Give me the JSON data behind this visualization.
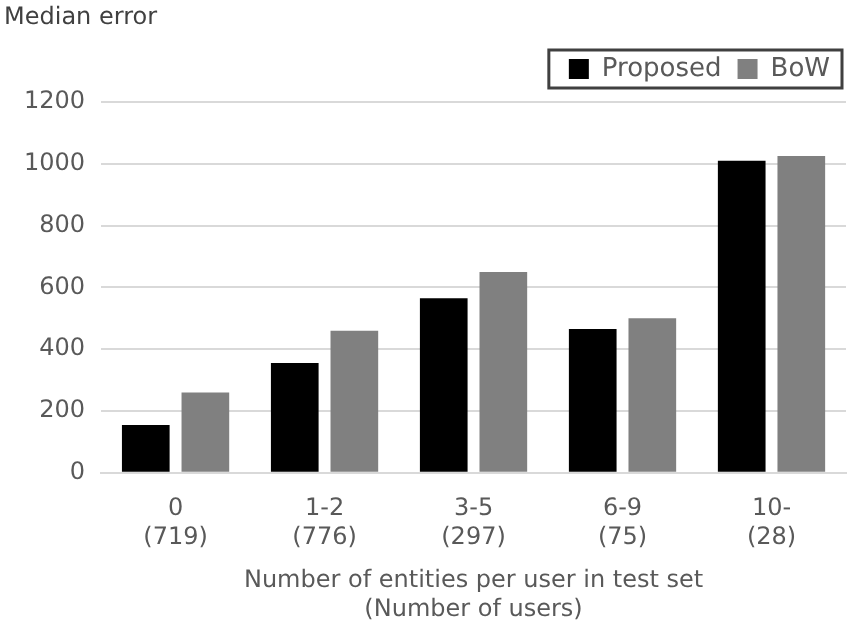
{
  "chart_data": {
    "type": "bar",
    "categories": [
      "0\n(719)",
      "1-2\n(776)",
      "3-5\n(297)",
      "6-9\n(75)",
      "10-\n(28)"
    ],
    "series": [
      {
        "name": "Proposed",
        "color": "#000000",
        "values": [
          155,
          355,
          565,
          465,
          1010
        ]
      },
      {
        "name": "BoW",
        "color": "#808080",
        "values": [
          260,
          460,
          650,
          500,
          1025
        ]
      }
    ],
    "ylabel": "Median error",
    "xlabel": "Number of entities per user in test set\n(Number of users)",
    "ylim": [
      0,
      1200
    ],
    "yticks": [
      0,
      200,
      400,
      600,
      800,
      1000,
      1200
    ],
    "grid": "y",
    "legend": "top right"
  }
}
